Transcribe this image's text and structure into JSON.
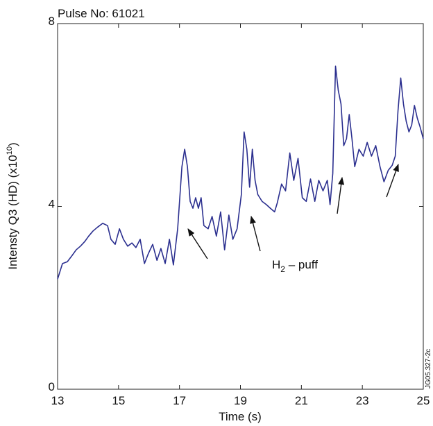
{
  "chart_data": {
    "type": "line",
    "title": "Pulse No: 61021",
    "xlabel": "Time (s)",
    "ylabel": [
      "Intensty Q3 (HD) (x10",
      "10",
      ")"
    ],
    "annotation": [
      "H",
      "2",
      " – puff"
    ],
    "figure_id": "JG05.327-2c",
    "xlim": [
      13,
      25
    ],
    "ylim": [
      0,
      8
    ],
    "xticks": [
      13,
      15,
      17,
      19,
      21,
      23,
      25
    ],
    "yticks": [
      0,
      4,
      8
    ],
    "grid": false,
    "series": [
      {
        "color": "#2b2f8f",
        "x": [
          13.0,
          13.16,
          13.32,
          13.48,
          13.61,
          13.75,
          13.89,
          14.02,
          14.16,
          14.3,
          14.48,
          14.64,
          14.75,
          14.89,
          15.03,
          15.16,
          15.3,
          15.44,
          15.57,
          15.71,
          15.85,
          15.98,
          16.12,
          16.26,
          16.39,
          16.53,
          16.67,
          16.8,
          16.94,
          17.08,
          17.17,
          17.26,
          17.35,
          17.44,
          17.53,
          17.62,
          17.71,
          17.8,
          17.94,
          18.07,
          18.21,
          18.35,
          18.48,
          18.62,
          18.75,
          18.89,
          19.03,
          19.12,
          19.21,
          19.3,
          19.39,
          19.48,
          19.57,
          19.71,
          19.85,
          19.98,
          20.12,
          20.21,
          20.35,
          20.48,
          20.62,
          20.75,
          20.89,
          21.03,
          21.16,
          21.3,
          21.44,
          21.57,
          21.71,
          21.85,
          21.94,
          22.03,
          22.12,
          22.21,
          22.3,
          22.39,
          22.48,
          22.57,
          22.66,
          22.75,
          22.89,
          23.03,
          23.16,
          23.3,
          23.44,
          23.58,
          23.71,
          23.85,
          23.98,
          24.08,
          24.17,
          24.26,
          24.35,
          24.44,
          24.53,
          24.62,
          24.71,
          24.8,
          24.89,
          25.0
        ],
        "values": [
          2.41,
          2.75,
          2.79,
          2.93,
          3.05,
          3.13,
          3.23,
          3.35,
          3.46,
          3.54,
          3.63,
          3.58,
          3.28,
          3.17,
          3.51,
          3.28,
          3.13,
          3.2,
          3.1,
          3.28,
          2.75,
          2.97,
          3.17,
          2.82,
          3.08,
          2.75,
          3.28,
          2.72,
          3.51,
          4.87,
          5.25,
          4.87,
          4.11,
          3.96,
          4.19,
          3.96,
          4.19,
          3.58,
          3.51,
          3.78,
          3.35,
          3.88,
          3.05,
          3.81,
          3.28,
          3.51,
          4.26,
          5.63,
          5.25,
          4.42,
          5.25,
          4.57,
          4.26,
          4.11,
          4.04,
          3.96,
          3.88,
          4.08,
          4.49,
          4.34,
          5.17,
          4.57,
          5.05,
          4.19,
          4.11,
          4.6,
          4.11,
          4.57,
          4.34,
          4.57,
          4.04,
          4.72,
          7.07,
          6.54,
          6.24,
          5.33,
          5.48,
          6.01,
          5.48,
          4.87,
          5.25,
          5.1,
          5.4,
          5.1,
          5.33,
          4.87,
          4.54,
          4.79,
          4.9,
          5.1,
          6.09,
          6.81,
          6.24,
          5.86,
          5.63,
          5.78,
          6.21,
          5.94,
          5.75,
          5.48
        ]
      }
    ]
  }
}
